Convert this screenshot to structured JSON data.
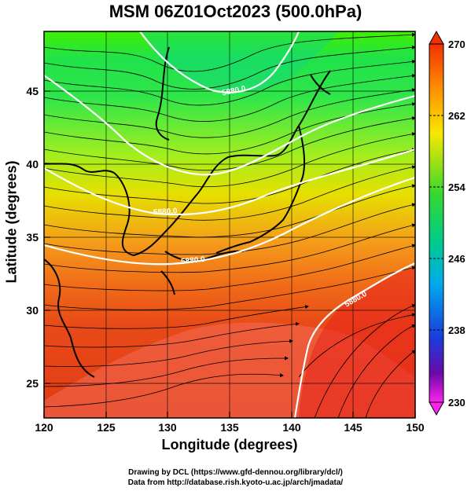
{
  "title": "MSM 06Z01Oct2023 (500.0hPa)",
  "x_axis": {
    "label": "Longitude (degrees)",
    "range": [
      120,
      150
    ],
    "ticks": [
      "120",
      "125",
      "130",
      "135",
      "140",
      "145",
      "150"
    ]
  },
  "y_axis": {
    "label": "Latitude  (degrees)",
    "range": [
      22.5,
      47.5
    ],
    "ticks": [
      "25",
      "30",
      "35",
      "40",
      "45"
    ]
  },
  "colorbar": {
    "range": [
      230,
      270
    ],
    "tick_labels": [
      "270",
      "262",
      "254",
      "246",
      "238",
      "230"
    ]
  },
  "contours": {
    "label_text": "5880.0",
    "labels": [
      "5880.0",
      "5880.0",
      "5880.0",
      "5880.0"
    ]
  },
  "credits": {
    "line1": "Drawing by DCL (https://www.gfd-dennou.org/library/dcl/)",
    "line2": "Data from http://database.rish.kyoto-u.ac.jp/arch/jmadata/"
  },
  "colors": {
    "cold": "#00d070",
    "warm": "#f04a10",
    "contour": "#ffffff"
  }
}
